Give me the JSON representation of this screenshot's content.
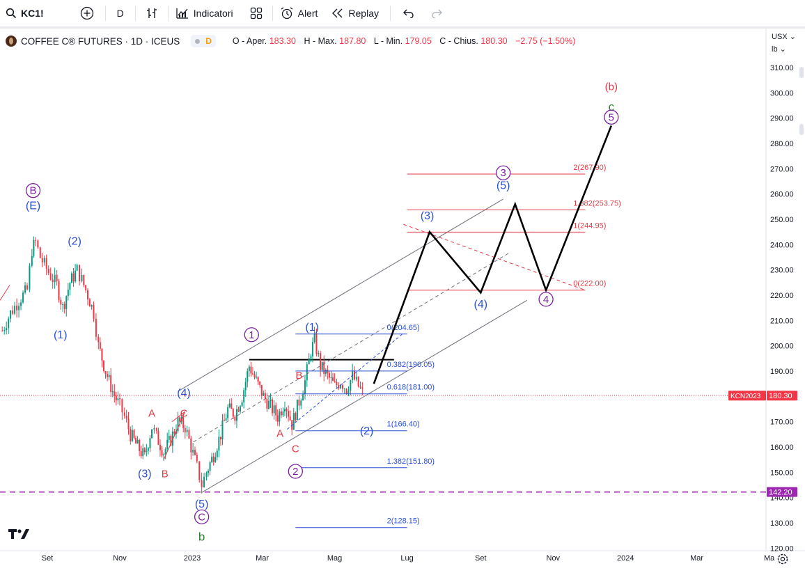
{
  "toolbar": {
    "symbol": "KC1!",
    "interval": "D",
    "indicators_label": "Indicatori",
    "alert_label": "Alert",
    "replay_label": "Replay"
  },
  "legend": {
    "title": "COFFEE C® FUTURES · 1D · ICEUS",
    "interval_badge": "D",
    "open_label": "O - Aper.",
    "open_value": "183.30",
    "high_label": "H - Max.",
    "high_value": "187.80",
    "low_label": "L - Min.",
    "low_value": "179.05",
    "close_label": "C - Chius.",
    "close_value": "180.30",
    "change_value": "−2.75 (−1.50%)"
  },
  "axis": {
    "currency": "USX",
    "unit": "lb",
    "price_labels": [
      "310.00",
      "300.00",
      "290.00",
      "280.00",
      "270.00",
      "260.00",
      "250.00",
      "240.00",
      "230.00",
      "220.00",
      "210.00",
      "200.00",
      "190.00",
      "180.00",
      "170.00",
      "160.00",
      "150.00",
      "140.00",
      "130.00",
      "120.00"
    ],
    "time_labels": [
      {
        "label": "Set",
        "date": "2022-09"
      },
      {
        "label": "Nov",
        "date": "2022-11"
      },
      {
        "label": "2023",
        "date": "2023-01"
      },
      {
        "label": "Mar",
        "date": "2023-03"
      },
      {
        "label": "Mag",
        "date": "2023-05"
      },
      {
        "label": "Lug",
        "date": "2023-07"
      },
      {
        "label": "Set",
        "date": "2023-09"
      },
      {
        "label": "Nov",
        "date": "2023-11"
      },
      {
        "label": "2024",
        "date": "2024-01"
      },
      {
        "label": "Mar",
        "date": "2024-03"
      },
      {
        "label": "Ma",
        "date": "2024-05"
      }
    ],
    "symbol_tag": "KCN2023",
    "last_price": "180.30",
    "level_tag": "142.20"
  },
  "colors": {
    "up": "#089981",
    "down": "#f23645",
    "wave_blue": "#2a4fd6",
    "wave_purple": "#7b1fa2",
    "wave_red": "#e53945",
    "wave_green": "#2e7d32",
    "fib_blue": "#2a4fd6",
    "fib_red": "#e53945",
    "level_purple": "#9c27b0"
  },
  "fib_retracement": [
    {
      "label": "0(204.65)",
      "price": 204.65
    },
    {
      "label": "0.382(190.05)",
      "price": 190.05
    },
    {
      "label": "0.618(181.00)",
      "price": 181.0
    },
    {
      "label": "1(166.40)",
      "price": 166.4
    },
    {
      "label": "1.382(151.80)",
      "price": 151.8
    },
    {
      "label": "2(128.15)",
      "price": 128.15
    }
  ],
  "fib_extension": [
    {
      "label": "2(267.90)",
      "price": 267.9
    },
    {
      "label": "1.382(253.75)",
      "price": 253.75
    },
    {
      "label": "1(244.95)",
      "price": 244.95
    },
    {
      "label": "0(222.00)",
      "price": 222.0
    }
  ],
  "wave_labels": [
    {
      "text": "(b)",
      "style": "red",
      "date": "2023-12-20",
      "price": 301
    },
    {
      "text": "c",
      "style": "green",
      "date": "2023-12-20",
      "price": 293
    },
    {
      "text": "5",
      "style": "circle",
      "date": "2023-12-20",
      "price": 289
    },
    {
      "text": "3",
      "style": "circle",
      "date": "2023-09-20",
      "price": 267
    },
    {
      "text": "(5)",
      "style": "blue",
      "date": "2023-09-20",
      "price": 262
    },
    {
      "text": "(3)",
      "style": "blue",
      "date": "2023-07-18",
      "price": 250
    },
    {
      "text": "(4)",
      "style": "blue",
      "date": "2023-09-01",
      "price": 215
    },
    {
      "text": "4",
      "style": "circle",
      "date": "2023-10-26",
      "price": 217
    },
    {
      "text": "B",
      "style": "circle",
      "date": "2022-08-20",
      "price": 260
    },
    {
      "text": "(E)",
      "style": "blue",
      "date": "2022-08-20",
      "price": 254
    },
    {
      "text": "(2)",
      "style": "blue",
      "date": "2022-09-24",
      "price": 240
    },
    {
      "text": "(1)",
      "style": "blue",
      "date": "2022-09-12",
      "price": 203
    },
    {
      "text": "(3)",
      "style": "blue",
      "date": "2022-11-22",
      "price": 148
    },
    {
      "text": "A",
      "style": "red",
      "date": "2022-11-28",
      "price": 172
    },
    {
      "text": "B",
      "style": "red",
      "date": "2022-12-09",
      "price": 148
    },
    {
      "text": "C",
      "style": "red",
      "date": "2022-12-25",
      "price": 172
    },
    {
      "text": "(4)",
      "style": "blue",
      "date": "2022-12-25",
      "price": 180
    },
    {
      "text": "(5)",
      "style": "blue",
      "date": "2023-01-09",
      "price": 136
    },
    {
      "text": "C",
      "style": "circle",
      "date": "2023-01-09",
      "price": 131
    },
    {
      "text": "b",
      "style": "green",
      "date": "2023-01-09",
      "price": 123
    },
    {
      "text": "1",
      "style": "circle",
      "date": "2023-02-20",
      "price": 203
    },
    {
      "text": "(1)",
      "style": "blue",
      "date": "2023-04-12",
      "price": 206
    },
    {
      "text": "B",
      "style": "red",
      "date": "2023-04-01",
      "price": 187
    },
    {
      "text": "A",
      "style": "red",
      "date": "2023-03-16",
      "price": 164
    },
    {
      "text": "C",
      "style": "red",
      "date": "2023-03-29",
      "price": 158
    },
    {
      "text": "(2)",
      "style": "blue",
      "date": "2023-05-28",
      "price": 165
    },
    {
      "text": "2",
      "style": "circle",
      "date": "2023-03-29",
      "price": 149
    }
  ],
  "chart_data": {
    "type": "candlestick",
    "series": [
      {
        "name": "KCN2023",
        "x": [],
        "values": []
      }
    ],
    "ohlc_daily": [
      {
        "d": "2022-07-25",
        "c": 206
      },
      {
        "d": "2022-08-01",
        "c": 213
      },
      {
        "d": "2022-08-08",
        "c": 218
      },
      {
        "d": "2022-08-15",
        "c": 222
      },
      {
        "d": "2022-08-19",
        "c": 238
      },
      {
        "d": "2022-08-22",
        "c": 241
      },
      {
        "d": "2022-08-26",
        "c": 235
      },
      {
        "d": "2022-09-02",
        "c": 229
      },
      {
        "d": "2022-09-09",
        "c": 224
      },
      {
        "d": "2022-09-14",
        "c": 215
      },
      {
        "d": "2022-09-20",
        "c": 225
      },
      {
        "d": "2022-09-26",
        "c": 230
      },
      {
        "d": "2022-09-30",
        "c": 226
      },
      {
        "d": "2022-10-05",
        "c": 220
      },
      {
        "d": "2022-10-10",
        "c": 213
      },
      {
        "d": "2022-10-14",
        "c": 200
      },
      {
        "d": "2022-10-20",
        "c": 190
      },
      {
        "d": "2022-10-26",
        "c": 182
      },
      {
        "d": "2022-11-01",
        "c": 176
      },
      {
        "d": "2022-11-05",
        "c": 172
      },
      {
        "d": "2022-11-10",
        "c": 165
      },
      {
        "d": "2022-11-16",
        "c": 160
      },
      {
        "d": "2022-11-22",
        "c": 156
      },
      {
        "d": "2022-11-28",
        "c": 168
      },
      {
        "d": "2022-12-02",
        "c": 164
      },
      {
        "d": "2022-12-08",
        "c": 158
      },
      {
        "d": "2022-12-14",
        "c": 163
      },
      {
        "d": "2022-12-20",
        "c": 170
      },
      {
        "d": "2022-12-26",
        "c": 168
      },
      {
        "d": "2022-12-31",
        "c": 160
      },
      {
        "d": "2023-01-05",
        "c": 152
      },
      {
        "d": "2023-01-09",
        "c": 145
      },
      {
        "d": "2023-01-13",
        "c": 150
      },
      {
        "d": "2023-01-19",
        "c": 157
      },
      {
        "d": "2023-01-25",
        "c": 165
      },
      {
        "d": "2023-01-31",
        "c": 175
      },
      {
        "d": "2023-02-06",
        "c": 173
      },
      {
        "d": "2023-02-12",
        "c": 180
      },
      {
        "d": "2023-02-18",
        "c": 192
      },
      {
        "d": "2023-02-24",
        "c": 186
      },
      {
        "d": "2023-03-02",
        "c": 180
      },
      {
        "d": "2023-03-08",
        "c": 176
      },
      {
        "d": "2023-03-14",
        "c": 172
      },
      {
        "d": "2023-03-20",
        "c": 178
      },
      {
        "d": "2023-03-26",
        "c": 169
      },
      {
        "d": "2023-04-01",
        "c": 178
      },
      {
        "d": "2023-04-06",
        "c": 186
      },
      {
        "d": "2023-04-11",
        "c": 198
      },
      {
        "d": "2023-04-14",
        "c": 202
      },
      {
        "d": "2023-04-19",
        "c": 192
      },
      {
        "d": "2023-04-25",
        "c": 188
      },
      {
        "d": "2023-05-01",
        "c": 184
      },
      {
        "d": "2023-05-06",
        "c": 186
      },
      {
        "d": "2023-05-11",
        "c": 183
      },
      {
        "d": "2023-05-16",
        "c": 188
      },
      {
        "d": "2023-05-21",
        "c": 184
      },
      {
        "d": "2023-05-26",
        "c": 180
      }
    ],
    "projection": [
      {
        "date": "2023-06-03",
        "price": 185
      },
      {
        "date": "2023-07-20",
        "price": 245
      },
      {
        "date": "2023-09-01",
        "price": 221
      },
      {
        "date": "2023-09-30",
        "price": 256
      },
      {
        "date": "2023-10-26",
        "price": 222
      },
      {
        "date": "2023-12-20",
        "price": 287
      }
    ],
    "horizontal_levels": [
      {
        "price": 194.5,
        "color": "#000000"
      },
      {
        "price": 180.3,
        "color": "#f23645",
        "style": "dotted"
      },
      {
        "price": 142.2,
        "color": "#9c27b0",
        "style": "dashed"
      }
    ],
    "ylim": [
      117,
      318
    ],
    "xlim": [
      "2022-07-25",
      "2024-05-10"
    ]
  }
}
